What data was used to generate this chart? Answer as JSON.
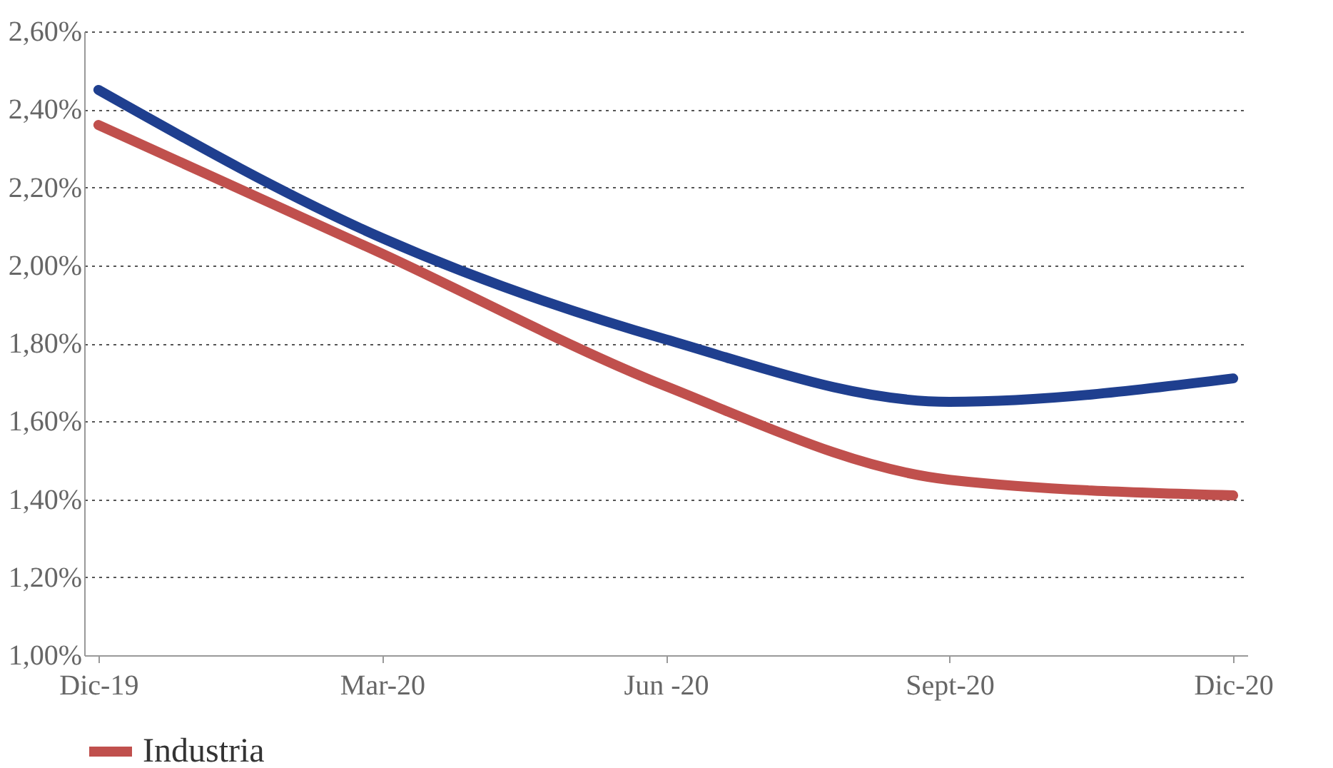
{
  "chart_data": {
    "type": "line",
    "categories": [
      "Dic-19",
      "Mar-20",
      "Jun -20",
      "Sept-20",
      "Dic-20"
    ],
    "series": [
      {
        "color": "#1f3f8f",
        "values": [
          2.45,
          2.07,
          1.81,
          1.65,
          1.71
        ]
      },
      {
        "name": "Industria",
        "color": "#c0504d",
        "values": [
          2.36,
          2.03,
          1.69,
          1.45,
          1.41
        ]
      }
    ],
    "ylim": [
      1,
      2.6
    ],
    "yticks": [
      {
        "value": 1,
        "label": "1,00%"
      },
      {
        "value": 1.2,
        "label": "1,20%"
      },
      {
        "value": 1.4,
        "label": "1,40%"
      },
      {
        "value": 1.6,
        "label": "1,60%"
      },
      {
        "value": 1.8,
        "label": "1,80%"
      },
      {
        "value": 2,
        "label": "2,00%"
      },
      {
        "value": 2.2,
        "label": "2,20%"
      },
      {
        "value": 2.4,
        "label": "2,40%"
      },
      {
        "value": 2.6,
        "label": "2,60%"
      }
    ],
    "grid": "y",
    "legend": "bottom",
    "marker": "none",
    "line_style": "solid"
  }
}
